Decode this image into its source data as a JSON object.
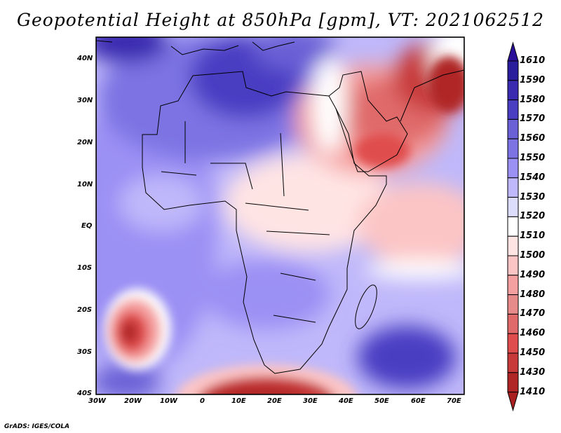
{
  "title": "Geopotential Height at 850hPa [gpm], VT: 2021062512",
  "credit": "GrADS: IGES/COLA",
  "chart_data": {
    "type": "heatmap",
    "variable": "Geopotential Height at 850hPa",
    "units": "gpm",
    "valid_time": "2021062512",
    "lon_range": [
      -30,
      75
    ],
    "lat_range": [
      -40,
      45
    ],
    "x_ticks": [
      "30W",
      "20W",
      "10W",
      "0",
      "10E",
      "20E",
      "30E",
      "40E",
      "50E",
      "60E",
      "70E"
    ],
    "y_ticks": [
      "40N",
      "30N",
      "20N",
      "10N",
      "EQ",
      "10S",
      "20S",
      "30S",
      "40S"
    ],
    "colorbar": {
      "labels": [
        "1610",
        "1590",
        "1580",
        "1570",
        "1560",
        "1550",
        "1540",
        "1530",
        "1520",
        "1510",
        "1500",
        "1490",
        "1480",
        "1470",
        "1460",
        "1450",
        "1430",
        "1410"
      ],
      "colors": [
        "#2a1e9c",
        "#3a2bb0",
        "#4a3ec2",
        "#6a61d6",
        "#7d73e3",
        "#9b90f4",
        "#bfb8fa",
        "#dcdcfc",
        "#ffffff",
        "#ffe4e4",
        "#fcc5c5",
        "#f5a0a0",
        "#e68a8a",
        "#e06a6a",
        "#e04d4d",
        "#c83a3a",
        "#b02626"
      ],
      "over_color": "#2a0f9a",
      "under_color": "#a82020"
    }
  }
}
